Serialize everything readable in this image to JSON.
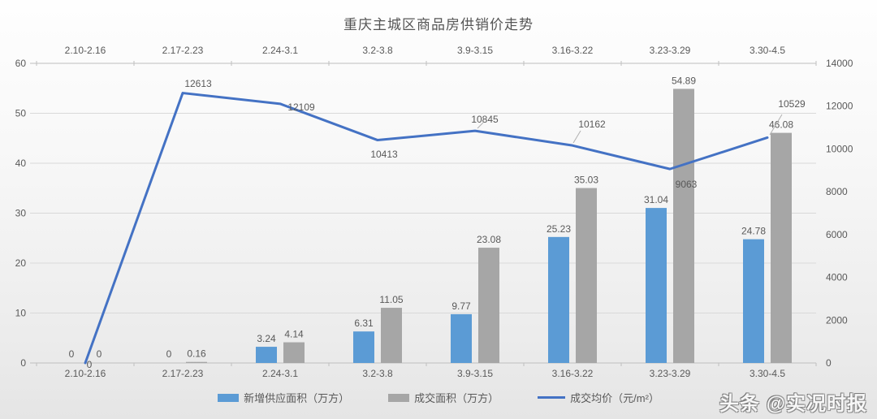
{
  "page": {
    "title": "重庆主城区商品房供销价走势",
    "watermark": "头条 @实况时报"
  },
  "colors": {
    "supply_bar": "#5B9BD5",
    "sold_bar": "#A6A6A6",
    "price_line": "#4472C4",
    "axis_text": "#595959",
    "label_text": "#595959",
    "gridline": "#d9d9d9",
    "axis_line": "#bfbfbf",
    "leader_line": "#b0b0b0"
  },
  "chart_data": {
    "type": "bar",
    "subtype": "combo bar+line, dual axis",
    "title": "重庆主城区商品房供销价走势",
    "categories": [
      "2.10-2.16",
      "2.17-2.23",
      "2.24-3.1",
      "3.2-3.8",
      "3.9-3.15",
      "3.16-3.22",
      "3.23-3.29",
      "3.30-4.5"
    ],
    "series": [
      {
        "name": "新增供应面积（万方）",
        "type": "bar",
        "axis": "left",
        "color": "#5B9BD5",
        "values": [
          0,
          0,
          3.24,
          6.31,
          9.77,
          25.23,
          31.04,
          24.78
        ],
        "labels": [
          "0",
          "0",
          "3.24",
          "6.31",
          "9.77",
          "25.23",
          "31.04",
          "24.78"
        ]
      },
      {
        "name": "成交面积（万方）",
        "type": "bar",
        "axis": "left",
        "color": "#A6A6A6",
        "values": [
          0,
          0.16,
          4.14,
          11.05,
          23.08,
          35.03,
          54.89,
          46.08
        ],
        "labels": [
          "0",
          "0.16",
          "4.14",
          "11.05",
          "23.08",
          "35.03",
          "54.89",
          "46.08"
        ]
      },
      {
        "name": "成交均价（元/m²）",
        "type": "line",
        "axis": "right",
        "color": "#4472C4",
        "values": [
          0,
          12613,
          12109,
          10413,
          10845,
          10162,
          9063,
          10529
        ],
        "labels": [
          "0",
          "12613",
          "12109",
          "10413",
          "10845",
          "10162",
          "9063",
          "10529"
        ]
      }
    ],
    "left_axis": {
      "min": 0,
      "max": 60,
      "step": 10,
      "ticks": [
        60,
        50,
        40,
        30,
        20,
        10,
        0
      ]
    },
    "right_axis": {
      "min": 0,
      "max": 14000,
      "step": 2000,
      "ticks": [
        14000,
        12000,
        10000,
        8000,
        6000,
        4000,
        2000,
        0
      ]
    },
    "grid": "horizontal gridlines on, left-axis intervals",
    "legend_position": "bottom",
    "category_axis_positions": [
      "top",
      "bottom"
    ],
    "layout_hints": {
      "price_label_centers": [
        [
          110,
          449
        ],
        [
          244,
          103
        ],
        [
          371,
          132
        ],
        [
          473,
          190
        ],
        [
          597,
          147
        ],
        [
          729,
          153
        ],
        [
          845,
          227
        ],
        [
          975,
          128
        ]
      ],
      "leader_lines": [
        [
          588,
          158,
          595,
          151
        ],
        [
          706,
          176,
          715,
          161
        ],
        [
          948,
          166,
          963,
          141
        ]
      ]
    }
  }
}
